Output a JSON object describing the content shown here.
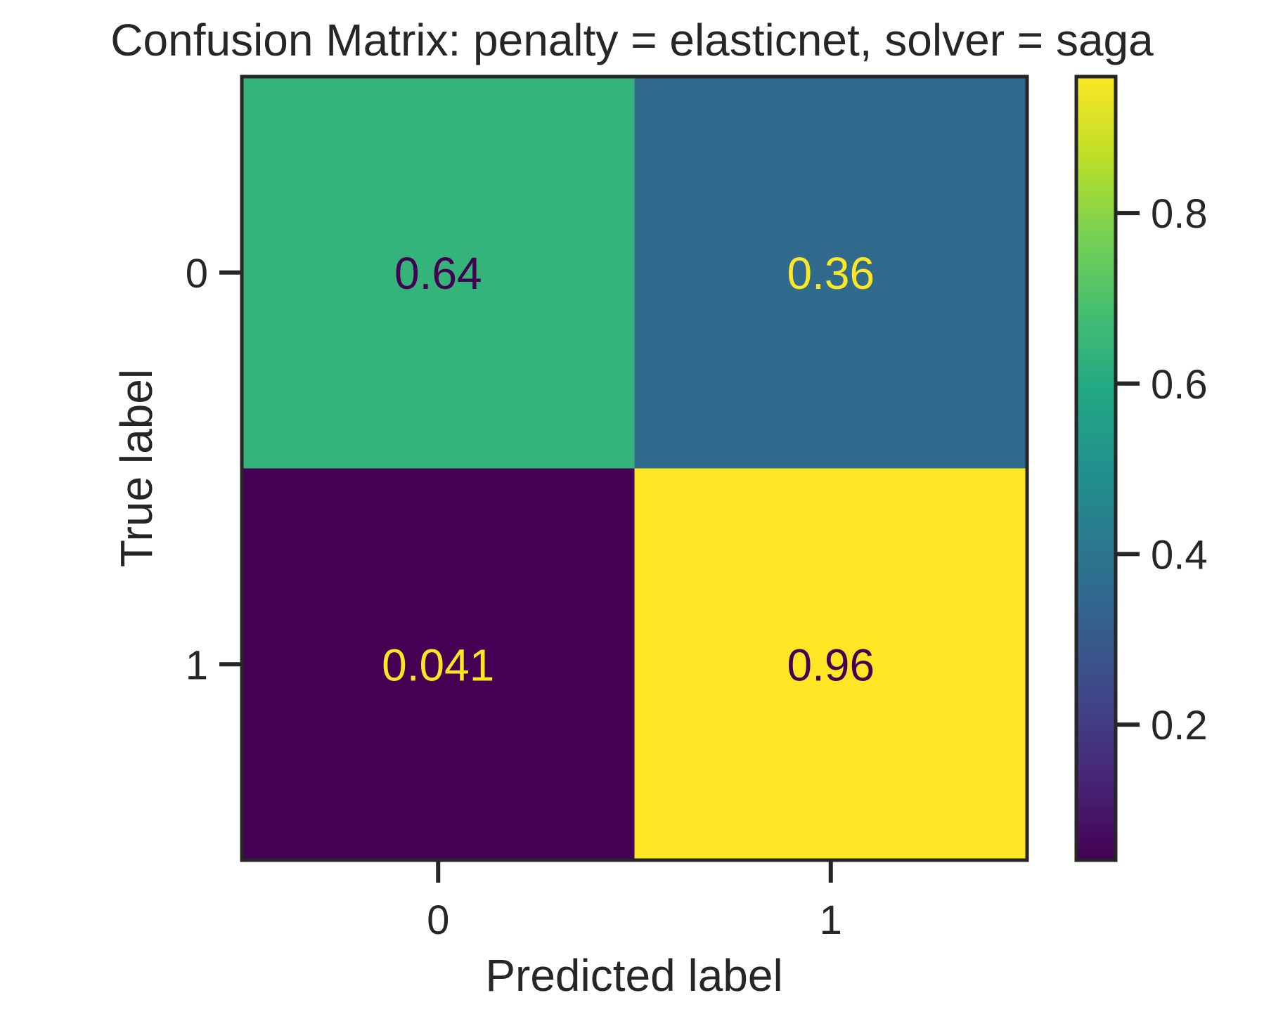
{
  "chart_data": {
    "type": "heatmap",
    "title": "Confusion Matrix: penalty = elasticnet, solver = saga",
    "xlabel": "Predicted label",
    "ylabel": "True label",
    "x_categories": [
      "0",
      "1"
    ],
    "y_categories": [
      "0",
      "1"
    ],
    "values": [
      [
        0.64,
        0.36
      ],
      [
        0.041,
        0.96
      ]
    ],
    "cell_labels": [
      [
        "0.64",
        "0.36"
      ],
      [
        "0.041",
        "0.96"
      ]
    ],
    "colormap": "viridis",
    "colorbar": {
      "range": [
        0.041,
        0.96
      ],
      "ticks": [
        0.2,
        0.4,
        0.6,
        0.8
      ],
      "tick_labels": [
        "0.2",
        "0.4",
        "0.6",
        "0.8"
      ]
    },
    "label_colors": {
      "dark": "#440154",
      "light": "#fde725"
    },
    "grid": false,
    "legend": "colorbar-right"
  }
}
